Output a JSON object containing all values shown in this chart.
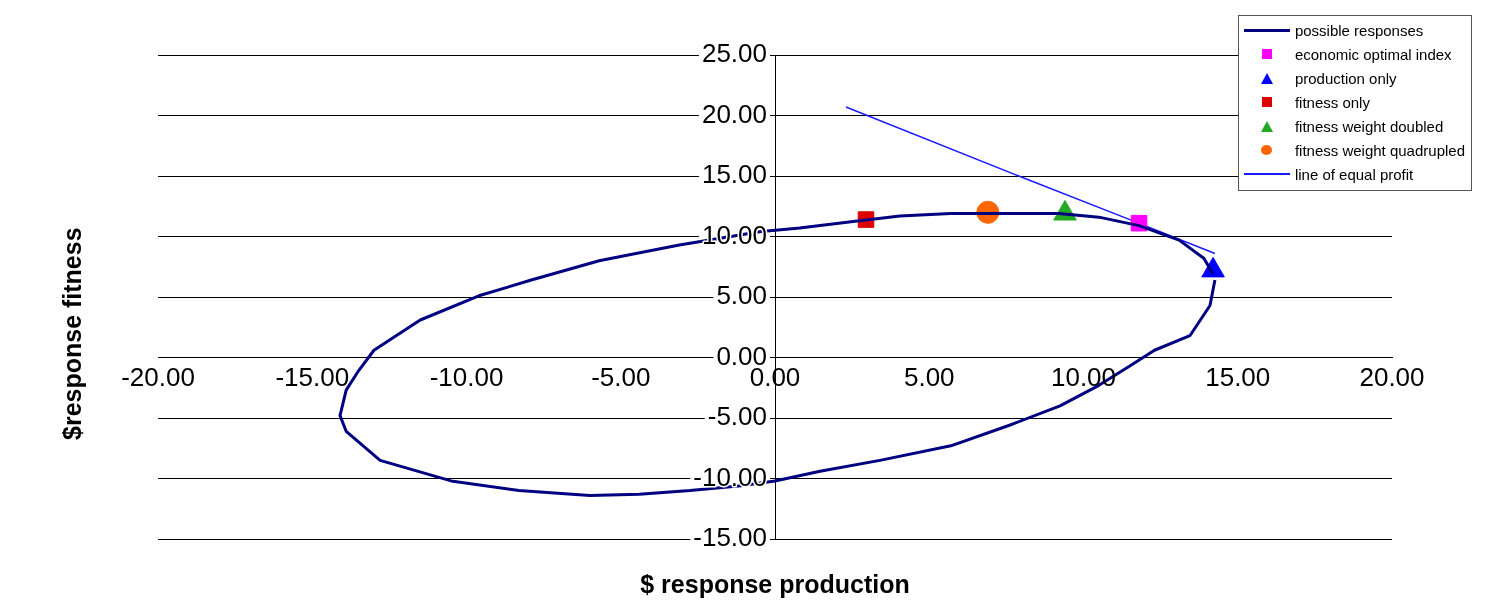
{
  "chart_data": {
    "type": "scatter",
    "xlabel": "$ response production",
    "ylabel": "$response fitness",
    "xlim": [
      -20,
      20
    ],
    "ylim": [
      -15,
      25
    ],
    "xticks": [
      {
        "value": -20,
        "label": "-20.00"
      },
      {
        "value": -15,
        "label": "-15.00"
      },
      {
        "value": -10,
        "label": "-10.00"
      },
      {
        "value": -5,
        "label": "-5.00"
      },
      {
        "value": 0,
        "label": "0.00"
      },
      {
        "value": 5,
        "label": "5.00"
      },
      {
        "value": 10,
        "label": "10.00"
      },
      {
        "value": 15,
        "label": "15.00"
      },
      {
        "value": 20,
        "label": "20.00"
      }
    ],
    "yticks": [
      {
        "value": -15,
        "label": "-15.00"
      },
      {
        "value": -10,
        "label": "-10.00"
      },
      {
        "value": -5,
        "label": "-5.00"
      },
      {
        "value": 0,
        "label": "0.00"
      },
      {
        "value": 5,
        "label": "5.00"
      },
      {
        "value": 10,
        "label": "10.00"
      },
      {
        "value": 15,
        "label": "15.00"
      },
      {
        "value": 20,
        "label": "20.00"
      },
      {
        "value": 25,
        "label": "25.00"
      }
    ],
    "grid": "y",
    "legend": "top right",
    "series": [
      {
        "name": "possible responses",
        "type": "line",
        "marker": "none",
        "color": "#000080",
        "x": [
          14.26,
          14.1,
          13.45,
          12.3,
          11.5,
          10.5,
          9.24,
          7.6,
          5.7,
          3.4,
          1.46,
          0,
          -1.1,
          -2.75,
          -4.4,
          -6.0,
          -8.3,
          -10.5,
          -12.8,
          -13.9,
          -14.1,
          -13.9,
          -13.5,
          -13.0,
          -11.5,
          -9.6,
          -7.9,
          -5.7,
          -3.1,
          -0.5,
          0.8,
          2.4,
          4.05,
          5.7,
          7.3,
          9.2,
          10.5,
          11.8,
          13.1,
          13.9,
          14.2
        ],
        "values": [
          6.4,
          4.3,
          1.8,
          0.6,
          -0.7,
          -2.3,
          -4.0,
          -5.6,
          -7.3,
          -8.5,
          -9.4,
          -10.2,
          -10.6,
          -11.0,
          -11.3,
          -11.4,
          -11.0,
          -10.2,
          -8.5,
          -6.1,
          -4.8,
          -2.7,
          -1.1,
          0.6,
          3.1,
          5.1,
          6.4,
          8.0,
          9.3,
          10.4,
          10.7,
          11.2,
          11.7,
          11.9,
          11.9,
          11.9,
          11.6,
          10.9,
          9.7,
          8.2,
          6.9
        ]
      },
      {
        "name": "economic optimal index",
        "type": "scatter",
        "marker": "square",
        "color": "#ff00ff",
        "x": [
          11.8
        ],
        "values": [
          11.1
        ]
      },
      {
        "name": "production only",
        "type": "scatter",
        "marker": "triangle",
        "color": "#0000ff",
        "x": [
          14.2
        ],
        "values": [
          7.2
        ]
      },
      {
        "name": "fitness only",
        "type": "scatter",
        "marker": "square",
        "color": "#dd0000",
        "x": [
          2.95
        ],
        "values": [
          11.4
        ]
      },
      {
        "name": "fitness weight doubled",
        "type": "scatter",
        "marker": "triangle",
        "color": "#22aa22",
        "x": [
          9.4
        ],
        "values": [
          11.9
        ]
      },
      {
        "name": "fitness weight quadrupled",
        "type": "scatter",
        "marker": "circle",
        "color": "#ff6600",
        "x": [
          6.9
        ],
        "values": [
          12.0
        ]
      },
      {
        "name": "line of equal profit",
        "type": "line",
        "marker": "none",
        "color": "#1a1aff",
        "x": [
          2.3,
          7.9,
          11.4,
          14.26
        ],
        "values": [
          20.7,
          15.0,
          11.5,
          8.6
        ]
      }
    ]
  }
}
